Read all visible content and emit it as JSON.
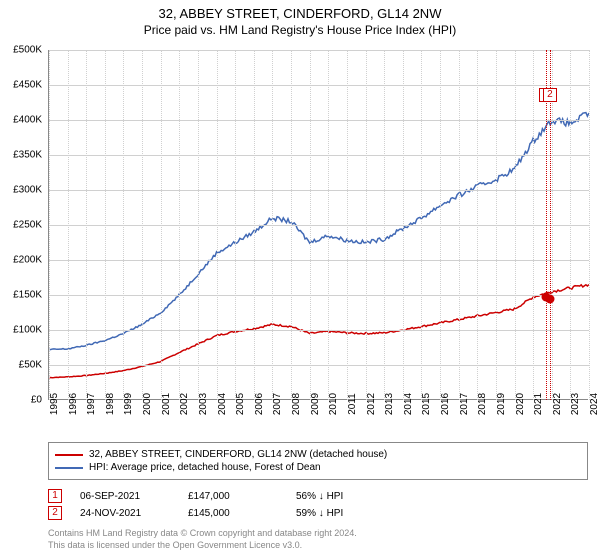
{
  "title": "32, ABBEY STREET, CINDERFORD, GL14 2NW",
  "subtitle": "Price paid vs. HM Land Registry's House Price Index (HPI)",
  "chart": {
    "type": "line",
    "background_color": "#ffffff",
    "grid_color": "#d0d0d0",
    "axis_color": "#888888",
    "y_axis": {
      "min": 0,
      "max": 500000,
      "step": 50000,
      "labels": [
        "£0",
        "£50K",
        "£100K",
        "£150K",
        "£200K",
        "£250K",
        "£300K",
        "£350K",
        "£400K",
        "£450K",
        "£500K"
      ],
      "label_fontsize": 10
    },
    "x_axis": {
      "years": [
        1995,
        1996,
        1997,
        1998,
        1999,
        2000,
        2001,
        2002,
        2003,
        2004,
        2005,
        2006,
        2007,
        2008,
        2009,
        2010,
        2011,
        2012,
        2013,
        2014,
        2015,
        2016,
        2017,
        2018,
        2019,
        2020,
        2021,
        2022,
        2023,
        2024
      ],
      "label_fontsize": 10
    },
    "series": [
      {
        "name": "property",
        "label": "32, ABBEY STREET, CINDERFORD, GL14 2NW (detached house)",
        "color": "#cc0000",
        "line_width": 1.5,
        "values_by_year": [
          32000,
          33000,
          35000,
          38000,
          42000,
          48000,
          55000,
          68000,
          80000,
          92000,
          98000,
          102000,
          108000,
          105000,
          95000,
          98000,
          96000,
          95000,
          96000,
          100000,
          105000,
          110000,
          115000,
          120000,
          125000,
          130000,
          147000,
          155000,
          160000,
          165000
        ]
      },
      {
        "name": "hpi",
        "label": "HPI: Average price, detached house, Forest of Dean",
        "color": "#4169b5",
        "line_width": 1.5,
        "values_by_year": [
          72000,
          73000,
          78000,
          85000,
          95000,
          108000,
          125000,
          150000,
          180000,
          210000,
          225000,
          240000,
          260000,
          255000,
          225000,
          235000,
          228000,
          225000,
          230000,
          245000,
          260000,
          278000,
          292000,
          305000,
          315000,
          330000,
          370000,
          400000,
          395000,
          410000
        ]
      }
    ],
    "markers": [
      {
        "idx": "1",
        "date_frac": 2021.68,
        "price": 147000,
        "color": "#cc0000"
      },
      {
        "idx": "2",
        "date_frac": 2021.9,
        "price": 145000,
        "color": "#cc0000"
      }
    ]
  },
  "legend": {
    "items": [
      {
        "color": "#cc0000",
        "label": "32, ABBEY STREET, CINDERFORD, GL14 2NW (detached house)"
      },
      {
        "color": "#4169b5",
        "label": "HPI: Average price, detached house, Forest of Dean"
      }
    ]
  },
  "transactions": [
    {
      "idx": "1",
      "date": "06-SEP-2021",
      "price": "£147,000",
      "pct": "56%",
      "arrow": "↓",
      "vs": "HPI",
      "color": "#cc0000"
    },
    {
      "idx": "2",
      "date": "24-NOV-2021",
      "price": "£145,000",
      "pct": "59%",
      "arrow": "↓",
      "vs": "HPI",
      "color": "#cc0000"
    }
  ],
  "footer": {
    "line1": "Contains HM Land Registry data © Crown copyright and database right 2024.",
    "line2": "This data is licensed under the Open Government Licence v3.0."
  }
}
